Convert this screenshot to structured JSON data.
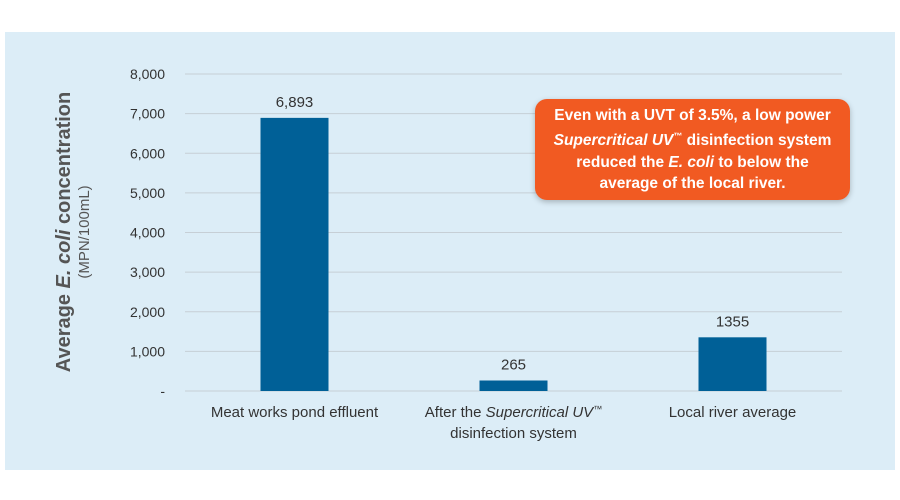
{
  "chart_data": {
    "type": "bar",
    "categories": [
      {
        "parts": [
          {
            "text": "Meat works pond effluent"
          }
        ]
      },
      {
        "parts": [
          {
            "text": "After the "
          },
          {
            "text": "Supercritical UV",
            "italic": true
          },
          {
            "text": "™",
            "sup": true
          },
          {
            "text": "\ndisinfection system"
          }
        ]
      },
      {
        "parts": [
          {
            "text": "Local river average"
          }
        ]
      }
    ],
    "values": [
      6893,
      265,
      1355
    ],
    "data_labels": [
      "6,893",
      "265",
      "1355"
    ],
    "ylim": [
      0,
      8000
    ],
    "y_ticks": [
      0,
      1000,
      2000,
      3000,
      4000,
      5000,
      6000,
      7000,
      8000
    ],
    "y_tick_labels": [
      "-",
      "1,000",
      "2,000",
      "3,000",
      "4,000",
      "5,000",
      "6,000",
      "7,000",
      "8,000"
    ],
    "ylabel_parts": [
      {
        "text": "Average "
      },
      {
        "text": "E. coli",
        "italic": true
      },
      {
        "text": " concentration"
      }
    ],
    "ylabel_sub": "(MPN/100mL)",
    "grid": true,
    "bar_color": "#006097",
    "gridline_color": "#c6cfd6",
    "annotation_parts": [
      {
        "text": "Even with a UVT of 3.5%, a low power "
      },
      {
        "text": "Supercritical UV",
        "italic": true
      },
      {
        "text": "™",
        "sup": true
      },
      {
        "text": " disinfection system reduced the "
      },
      {
        "text": "E. coli",
        "italic": true
      },
      {
        "text": " to below the average of the local river."
      }
    ]
  },
  "colors": {
    "panel_background": "#dcedf7",
    "callout_background": "#f15a22"
  }
}
